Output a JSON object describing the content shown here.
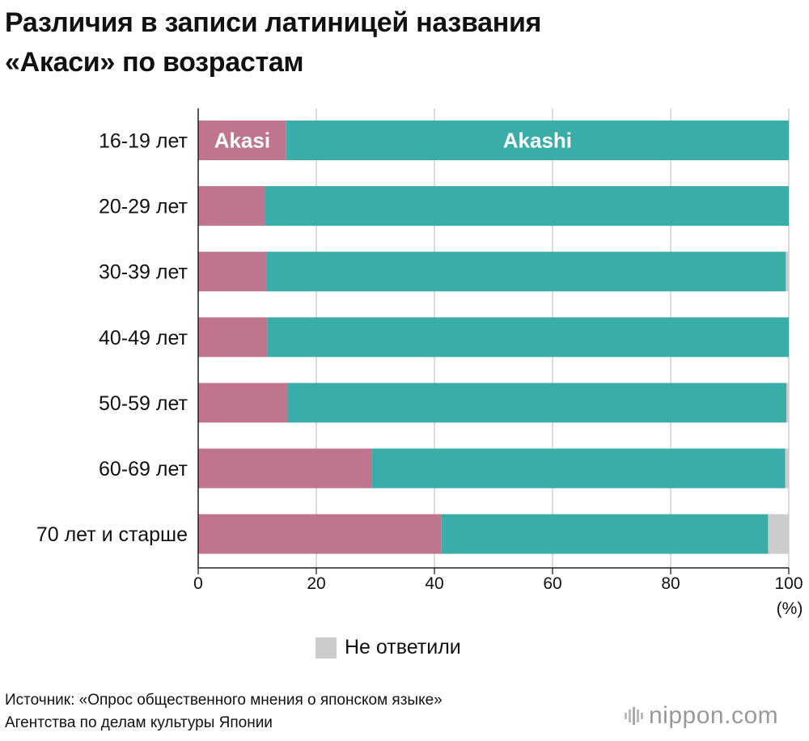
{
  "title": {
    "line1": "Различия в записи латиницей названия",
    "line2": "«Акаси» по возрастам"
  },
  "chart_data": {
    "type": "bar",
    "orientation": "horizontal",
    "stacked": true,
    "categories": [
      "16-19 лет",
      "20-29 лет",
      "30-39 лет",
      "40-49 лет",
      "50-59 лет",
      "60-69 лет",
      "70 лет и старше"
    ],
    "series": [
      {
        "name": "Akasi",
        "color": "#c0758f",
        "values": [
          14.9,
          11.3,
          11.5,
          11.7,
          15.2,
          29.4,
          41.2
        ]
      },
      {
        "name": "Akashi",
        "color": "#3aada9",
        "values": [
          85.1,
          88.7,
          88.0,
          88.3,
          84.4,
          70.0,
          55.3
        ]
      },
      {
        "name": "Не ответили",
        "color": "#cccccc",
        "values": [
          0.0,
          0.0,
          0.5,
          0.0,
          0.4,
          0.6,
          3.5
        ]
      }
    ],
    "in_bar_labels": [
      "Akasi",
      "Akashi"
    ],
    "x_ticks": [
      0,
      20,
      40,
      60,
      80,
      100
    ],
    "xlim": [
      0,
      100
    ],
    "x_unit": "(%)",
    "grid": true
  },
  "legend": {
    "label": "Не ответили",
    "color": "#cccccc"
  },
  "source": {
    "line1": "Источник: «Опрос общественного мнения о японском языке»",
    "line2": "Агентства по делам культуры Японии"
  },
  "logo": {
    "name": "nippon",
    "dot": ".",
    "tld": "com"
  }
}
